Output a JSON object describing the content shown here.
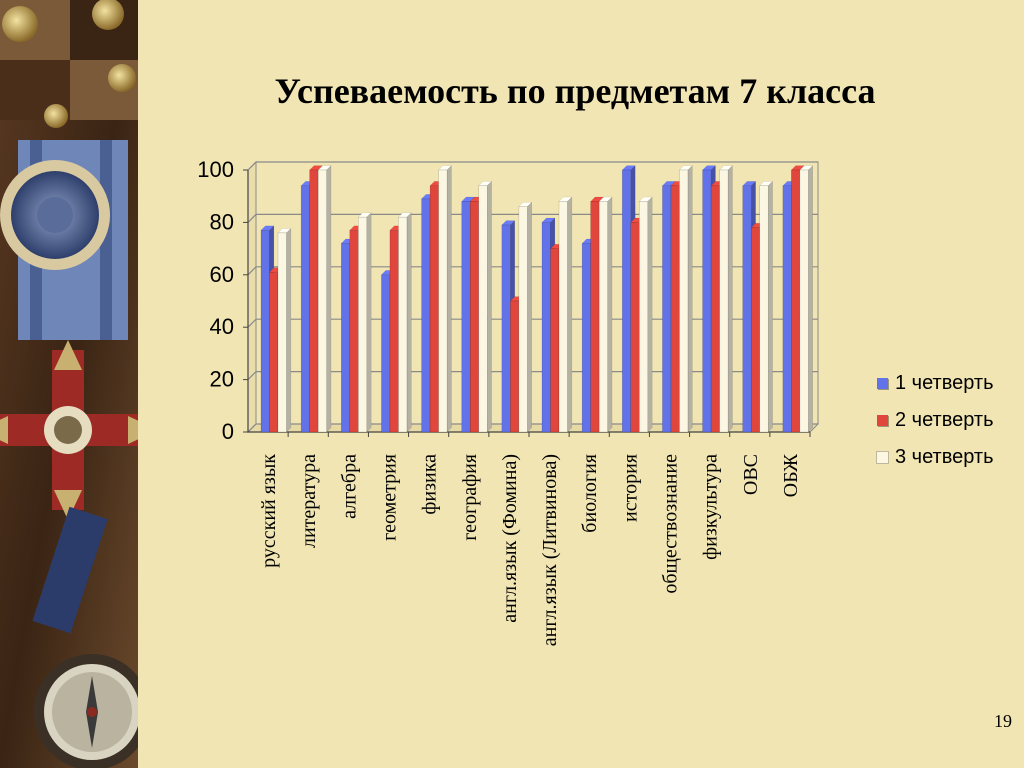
{
  "slide": {
    "title": "Успеваемость по предметам 7 класса",
    "page_number": "19"
  },
  "colors": {
    "background": "#f1e6b3",
    "series_1": "#6272e8",
    "series_2": "#e0463c",
    "series_3": "#fbf7e3"
  },
  "decoration": {
    "left_strip": "photo of medals, ribbon, order cross and compass"
  },
  "chart_data": {
    "type": "bar",
    "title": "",
    "xlabel": "",
    "ylabel": "",
    "ylim": [
      0,
      100
    ],
    "yticks": [
      "0",
      "20",
      "40",
      "60",
      "80",
      "100"
    ],
    "grid": true,
    "three_d": true,
    "legend_position": "right",
    "categories": [
      "русский язык",
      "литература",
      "алгебра",
      "геометрия",
      "физика",
      "география",
      "англ.язык (Фомина)",
      "англ.язык (Литвинова)",
      "биология",
      "история",
      "обществознание",
      "физкультура",
      "ОВС",
      "ОБЖ"
    ],
    "series": [
      {
        "name": "1 четверть",
        "values": [
          77,
          94,
          72,
          60,
          89,
          88,
          79,
          80,
          72,
          100,
          94,
          100,
          94,
          94
        ]
      },
      {
        "name": "2 четверть",
        "values": [
          61,
          100,
          77,
          77,
          94,
          88,
          50,
          70,
          88,
          80,
          94,
          94,
          78,
          100
        ]
      },
      {
        "name": "3 четверть",
        "values": [
          76,
          100,
          82,
          82,
          100,
          94,
          86,
          88,
          88,
          88,
          100,
          100,
          94,
          100
        ]
      }
    ]
  }
}
